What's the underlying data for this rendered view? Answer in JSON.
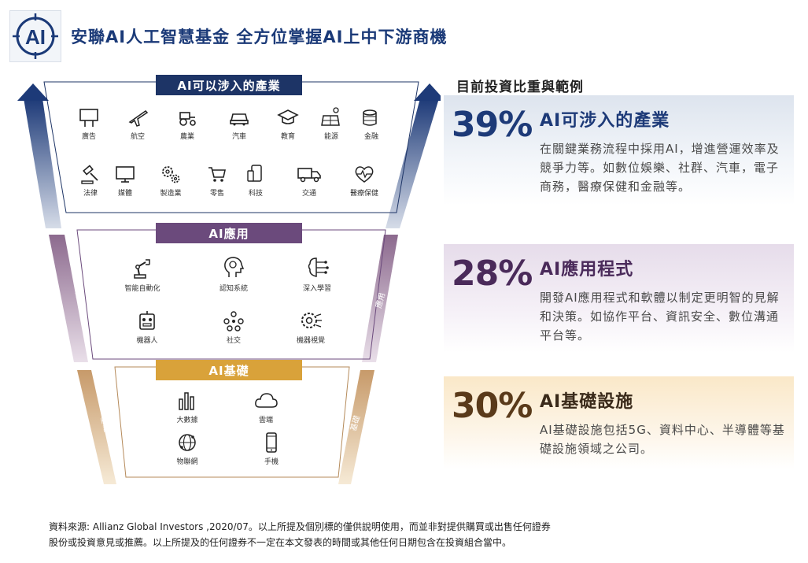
{
  "header": {
    "logo_text": "AI",
    "title": "安聯AI人工智慧基金  全方位掌握AI上中下游商機"
  },
  "funnel": {
    "layers": [
      {
        "label": "AI可以涉入的產業",
        "color": "#1d3466",
        "items": [
          {
            "label": "廣告",
            "icon": "billboard-icon"
          },
          {
            "label": "航空",
            "icon": "airplane-icon"
          },
          {
            "label": "農業",
            "icon": "tractor-icon"
          },
          {
            "label": "汽車",
            "icon": "car-icon"
          },
          {
            "label": "教育",
            "icon": "graduation-cap-icon"
          },
          {
            "label": "能源",
            "icon": "solar-panel-icon"
          },
          {
            "label": "金融",
            "icon": "coins-icon"
          },
          {
            "label": "法律",
            "icon": "gavel-icon"
          },
          {
            "label": "媒體",
            "icon": "monitor-icon"
          },
          {
            "label": "製造業",
            "icon": "gears-icon"
          },
          {
            "label": "零售",
            "icon": "shopping-cart-icon"
          },
          {
            "label": "科技",
            "icon": "devices-icon"
          },
          {
            "label": "交通",
            "icon": "truck-icon"
          },
          {
            "label": "醫療保健",
            "icon": "heart-pulse-icon"
          }
        ]
      },
      {
        "label": "AI應用",
        "color": "#6b4a7c",
        "items": [
          {
            "label": "智能自動化",
            "icon": "robot-arm-icon"
          },
          {
            "label": "認知系統",
            "icon": "brain-head-icon"
          },
          {
            "label": "深入學習",
            "icon": "brain-circuit-icon"
          },
          {
            "label": "機器人",
            "icon": "robot-icon"
          },
          {
            "label": "社交",
            "icon": "social-network-icon"
          },
          {
            "label": "機器視覺",
            "icon": "eye-gear-icon"
          }
        ]
      },
      {
        "label": "AI基礎",
        "color": "#d9a23a",
        "items": [
          {
            "label": "大數據",
            "icon": "bar-chart-icon"
          },
          {
            "label": "雲端",
            "icon": "cloud-icon"
          },
          {
            "label": "物聯網",
            "icon": "iot-globe-icon"
          },
          {
            "label": "手機",
            "icon": "mobile-phone-icon"
          }
        ]
      }
    ],
    "side_labels": {
      "middle": "應用",
      "bottom": "基礎"
    }
  },
  "breakdown": {
    "heading": "目前投資比重與範例",
    "cards": [
      {
        "percent": "39%",
        "title": "AI可涉入的產業",
        "description": "在關鍵業務流程中採用AI，增進營運效率及競爭力等。如數位娛樂、社群、汽車，電子商務，醫療保健和金融等。",
        "color": "#1d3a78",
        "bg": "#e3e9f1"
      },
      {
        "percent": "28%",
        "title": "AI應用程式",
        "description": "開發AI應用程式和軟體以制定更明智的見解和決策。如協作平台、資訊安全、數位溝通平台等。",
        "color": "#4a2a5a",
        "bg": "#ece3ef"
      },
      {
        "percent": "30%",
        "title": "AI基礎設施",
        "description": "AI基礎設施包括5G、資料中心、半導體等基礎設施領域之公司。",
        "color": "#5a3a1a",
        "bg": "#fbecd2"
      }
    ]
  },
  "footer": {
    "line1": "資料來源: Allianz Global Investors ,2020/07。以上所提及個別標的僅供說明使用，而並非對提供購買或出售任何證券",
    "line2": "股份或投資意見或推薦。以上所提及的任何證券不一定在本文發表的時間或其他任何日期包含在投資組合當中。"
  }
}
